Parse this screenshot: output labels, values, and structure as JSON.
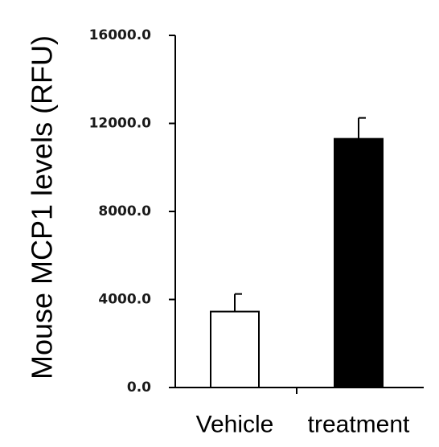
{
  "chart_data": {
    "type": "bar",
    "categories": [
      "Vehicle",
      "treatment"
    ],
    "values": [
      3450,
      11300
    ],
    "errors": [
      800,
      950
    ],
    "bar_fills": [
      "#ffffff",
      "#000000"
    ],
    "bar_stroke": "#000000",
    "ylabel": "Mouse MCP1 levels (RFU)",
    "xlabel": "",
    "ylim": [
      0,
      16000
    ],
    "yticks": [
      0,
      4000,
      8000,
      12000,
      16000
    ],
    "ytick_labels": [
      "0.0",
      "4000.0",
      "8000.0",
      "12000.0",
      "16000.0"
    ],
    "grid": false
  }
}
